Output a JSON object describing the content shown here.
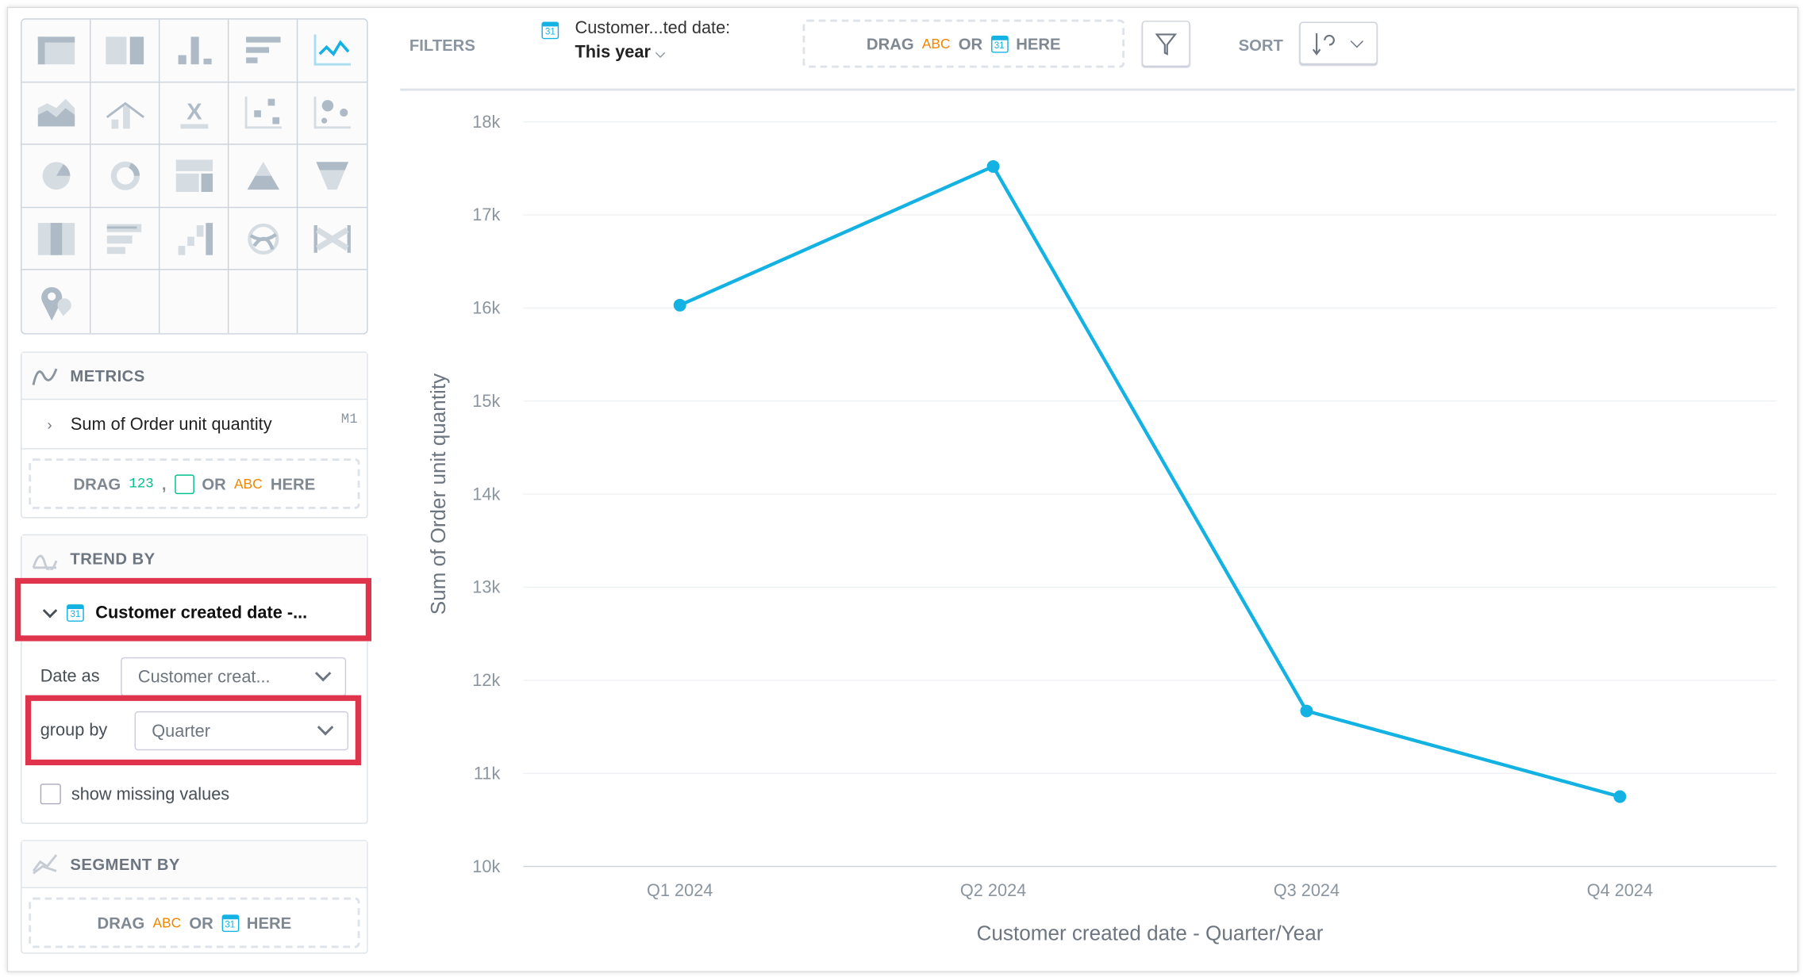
{
  "chart_types": [
    "table",
    "headline-table",
    "column",
    "bar",
    "line",
    "area",
    "combo",
    "headline",
    "scatter",
    "bubble",
    "pie",
    "donut",
    "treemap",
    "pyramid",
    "funnel",
    "heatmap",
    "bullet",
    "waterfall",
    "dependency-wheel",
    "sankey",
    "geo-pushpin"
  ],
  "metrics": {
    "title": "METRICS",
    "item": "Sum of Order unit quantity",
    "item_tag": "M1",
    "drop": {
      "drag": "DRAG",
      "num": "123",
      "sep": ",",
      "or": "OR",
      "abc": "ABC",
      "here": "HERE"
    }
  },
  "trend": {
    "title": "TREND BY",
    "item": "Customer created date -...",
    "date_as_label": "Date as",
    "date_as_value": "Customer creat...",
    "group_by_label": "group by",
    "group_by_value": "Quarter",
    "show_missing": "show missing values"
  },
  "segment": {
    "title": "SEGMENT BY",
    "drop": {
      "drag": "DRAG",
      "abc": "ABC",
      "or": "OR",
      "here": "HERE",
      "cal": "31"
    }
  },
  "toolbar": {
    "filters": "FILTERS",
    "filter_name": "Customer...ted date:",
    "filter_value": "This year",
    "drop": {
      "drag": "DRAG",
      "abc": "ABC",
      "or": "OR",
      "here": "HERE",
      "cal": "31"
    },
    "sort": "SORT"
  },
  "chart_data": {
    "type": "line",
    "categories": [
      "Q1 2024",
      "Q2 2024",
      "Q3 2024",
      "Q4 2024"
    ],
    "values": [
      16030,
      17520,
      11670,
      10750
    ],
    "xlabel": "Customer created date - Quarter/Year",
    "ylabel": "Sum of Order unit quantity",
    "ylim": [
      10000,
      18000
    ],
    "yticks": [
      "10k",
      "11k",
      "12k",
      "13k",
      "14k",
      "15k",
      "16k",
      "17k",
      "18k"
    ],
    "grid": true,
    "color": "#14b2e2"
  }
}
